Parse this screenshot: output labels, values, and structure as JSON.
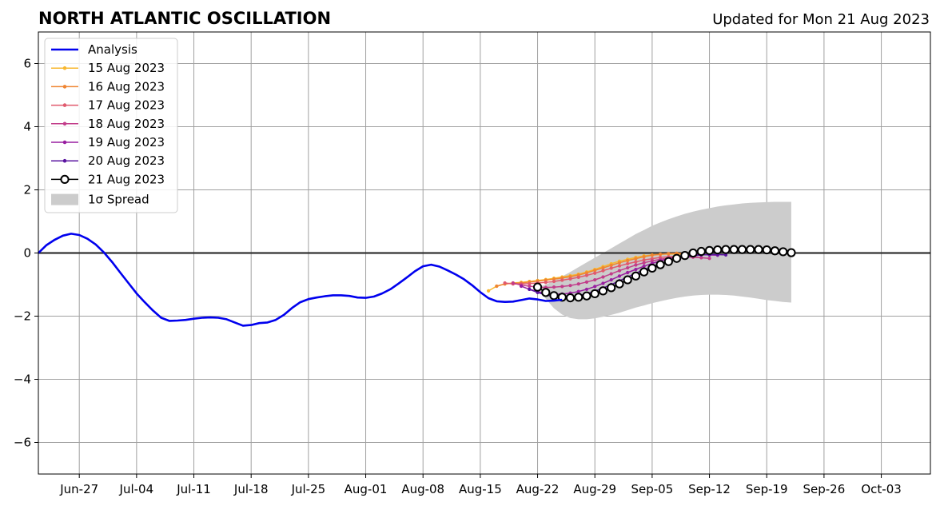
{
  "chart_data": {
    "type": "line",
    "title": "NORTH ATLANTIC OSCILLATION",
    "subtitle": "Updated for Mon 21 Aug 2023",
    "xlabel": "",
    "ylabel": "",
    "xlim": [
      "2023-06-22",
      "2023-10-09"
    ],
    "ylim": [
      -7,
      7
    ],
    "yticks": [
      -6,
      -4,
      -2,
      0,
      2,
      4,
      6
    ],
    "ytick_labels": [
      "−6",
      "−4",
      "−2",
      "0",
      "2",
      "4",
      "6"
    ],
    "xticks": [
      "2023-06-27",
      "2023-07-04",
      "2023-07-11",
      "2023-07-18",
      "2023-07-25",
      "2023-08-01",
      "2023-08-08",
      "2023-08-15",
      "2023-08-22",
      "2023-08-29",
      "2023-09-05",
      "2023-09-12",
      "2023-09-19",
      "2023-09-26",
      "2023-10-03"
    ],
    "xtick_labels": [
      "Jun-27",
      "Jul-04",
      "Jul-11",
      "Jul-18",
      "Jul-25",
      "Aug-01",
      "Aug-08",
      "Aug-15",
      "Aug-22",
      "Aug-29",
      "Sep-05",
      "Sep-12",
      "Sep-19",
      "Sep-26",
      "Oct-03"
    ],
    "grid": true,
    "legend_position": "top-left",
    "analysis": {
      "name": "Analysis",
      "color": "#0000ee",
      "start": "2023-06-22",
      "values": [
        0.0,
        0.25,
        0.42,
        0.55,
        0.61,
        0.57,
        0.45,
        0.27,
        0.02,
        -0.28,
        -0.62,
        -0.95,
        -1.28,
        -1.56,
        -1.82,
        -2.05,
        -2.15,
        -2.14,
        -2.12,
        -2.08,
        -2.05,
        -2.04,
        -2.05,
        -2.1,
        -2.2,
        -2.3,
        -2.28,
        -2.22,
        -2.2,
        -2.12,
        -1.96,
        -1.74,
        -1.56,
        -1.46,
        -1.41,
        -1.37,
        -1.34,
        -1.34,
        -1.36,
        -1.41,
        -1.42,
        -1.38,
        -1.28,
        -1.15,
        -0.97,
        -0.78,
        -0.58,
        -0.42,
        -0.37,
        -0.43,
        -0.55,
        -0.68,
        -0.83,
        -1.02,
        -1.24,
        -1.43,
        -1.53,
        -1.55,
        -1.54,
        -1.49,
        -1.44,
        -1.47,
        -1.52,
        -1.51,
        -1.48
      ]
    },
    "series": [
      {
        "name": "15 Aug 2023",
        "color": "#f8b72e",
        "start": "2023-08-16",
        "values": [
          -1.2,
          -1.05,
          -0.98,
          -0.95,
          -0.93,
          -0.9,
          -0.87,
          -0.84,
          -0.8,
          -0.76,
          -0.72,
          -0.67,
          -0.6,
          -0.52,
          -0.43,
          -0.34,
          -0.26,
          -0.2,
          -0.14,
          -0.09,
          -0.06,
          -0.04,
          -0.03,
          -0.03,
          -0.04
        ]
      },
      {
        "name": "16 Aug 2023",
        "color": "#ef8532",
        "start": "2023-08-17",
        "values": [
          -1.05,
          -0.98,
          -0.96,
          -0.95,
          -0.92,
          -0.89,
          -0.86,
          -0.83,
          -0.79,
          -0.75,
          -0.7,
          -0.63,
          -0.55,
          -0.47,
          -0.39,
          -0.31,
          -0.24,
          -0.18,
          -0.12,
          -0.07,
          -0.04,
          -0.02,
          -0.01,
          -0.02,
          -0.03
        ]
      },
      {
        "name": "17 Aug 2023",
        "color": "#e05a6e",
        "start": "2023-08-18",
        "values": [
          -0.95,
          -0.98,
          -0.98,
          -0.97,
          -0.95,
          -0.93,
          -0.9,
          -0.86,
          -0.82,
          -0.77,
          -0.71,
          -0.64,
          -0.56,
          -0.48,
          -0.41,
          -0.34,
          -0.28,
          -0.22,
          -0.18,
          -0.14,
          -0.12,
          -0.11,
          -0.12,
          -0.13,
          -0.15
        ]
      },
      {
        "name": "18 Aug 2023",
        "color": "#c23c8a",
        "start": "2023-08-19",
        "values": [
          -0.95,
          -1.02,
          -1.05,
          -1.08,
          -1.09,
          -1.08,
          -1.06,
          -1.03,
          -0.98,
          -0.92,
          -0.85,
          -0.76,
          -0.66,
          -0.56,
          -0.47,
          -0.38,
          -0.31,
          -0.25,
          -0.2,
          -0.16,
          -0.13,
          -0.12,
          -0.13,
          -0.15,
          -0.17
        ]
      },
      {
        "name": "19 Aug 2023",
        "color": "#981ea0",
        "start": "2023-08-20",
        "values": [
          -1.05,
          -1.15,
          -1.22,
          -1.28,
          -1.3,
          -1.3,
          -1.27,
          -1.22,
          -1.15,
          -1.06,
          -0.96,
          -0.85,
          -0.73,
          -0.62,
          -0.52,
          -0.42,
          -0.33,
          -0.25,
          -0.18,
          -0.12,
          -0.08,
          -0.06,
          -0.05,
          -0.06,
          -0.07
        ]
      },
      {
        "name": "20 Aug 2023",
        "color": "#5a14a0",
        "start": "2023-08-21",
        "values": [
          -1.15,
          -1.25,
          -1.33,
          -1.38,
          -1.4,
          -1.39,
          -1.35,
          -1.29,
          -1.21,
          -1.11,
          -1.0,
          -0.88,
          -0.76,
          -0.64,
          -0.53,
          -0.43,
          -0.34,
          -0.26,
          -0.19,
          -0.13,
          -0.09,
          -0.06,
          -0.05,
          -0.05,
          -0.06
        ]
      },
      {
        "name": "21 Aug 2023",
        "color": "#000000",
        "start": "2023-08-22",
        "values": [
          -1.08,
          -1.25,
          -1.35,
          -1.4,
          -1.42,
          -1.4,
          -1.36,
          -1.29,
          -1.2,
          -1.1,
          -0.98,
          -0.85,
          -0.73,
          -0.6,
          -0.48,
          -0.37,
          -0.27,
          -0.17,
          -0.08,
          0.0,
          0.05,
          0.08,
          0.1,
          0.11,
          0.11,
          0.11,
          0.11,
          0.11,
          0.1,
          0.07,
          0.04,
          0.01
        ]
      }
    ],
    "spread": {
      "name": "1σ Spread",
      "color": "#cccccc",
      "start": "2023-08-22",
      "upper": [
        -1.08,
        -1.0,
        -0.88,
        -0.74,
        -0.6,
        -0.45,
        -0.3,
        -0.15,
        0.0,
        0.15,
        0.3,
        0.45,
        0.6,
        0.73,
        0.86,
        0.97,
        1.07,
        1.16,
        1.24,
        1.31,
        1.37,
        1.42,
        1.47,
        1.51,
        1.54,
        1.57,
        1.59,
        1.6,
        1.61,
        1.62,
        1.62,
        1.62
      ],
      "lower": [
        -1.08,
        -1.45,
        -1.75,
        -1.95,
        -2.06,
        -2.1,
        -2.1,
        -2.07,
        -2.02,
        -1.96,
        -1.89,
        -1.81,
        -1.73,
        -1.66,
        -1.59,
        -1.53,
        -1.47,
        -1.42,
        -1.38,
        -1.35,
        -1.33,
        -1.32,
        -1.32,
        -1.33,
        -1.35,
        -1.38,
        -1.41,
        -1.45,
        -1.49,
        -1.52,
        -1.55,
        -1.57
      ]
    }
  }
}
